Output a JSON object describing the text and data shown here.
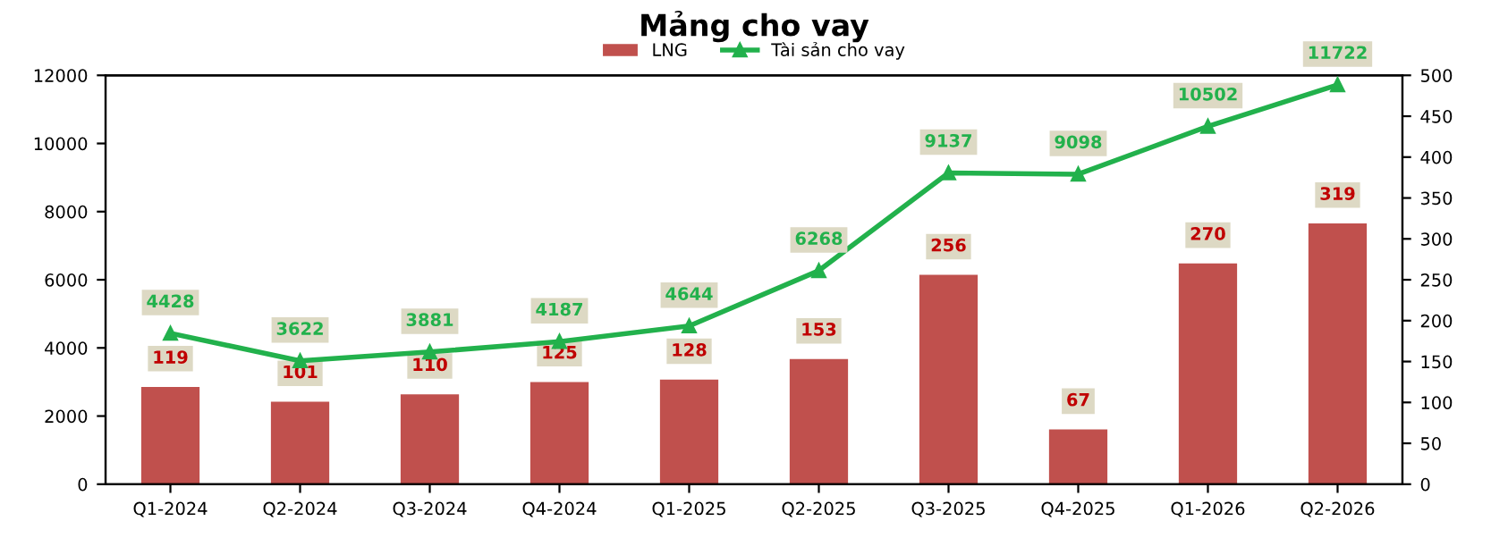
{
  "chart_data": {
    "type": "bar",
    "title": "Mảng cho vay",
    "categories": [
      "Q1-2024",
      "Q2-2024",
      "Q3-2024",
      "Q4-2024",
      "Q1-2025",
      "Q2-2025",
      "Q3-2025",
      "Q4-2025",
      "Q1-2026",
      "Q2-2026"
    ],
    "series": [
      {
        "name": "LNG",
        "color": "#c0504d",
        "axis": "y2",
        "values": [
          119,
          101,
          110,
          125,
          128,
          153,
          256,
          67,
          270,
          319
        ]
      },
      {
        "name": "Tài sản cho vay",
        "type": "line",
        "color": "#22b14c",
        "marker": "triangle",
        "values": [
          4428,
          3622,
          3881,
          4187,
          4644,
          6268,
          9137,
          9098,
          10502,
          11722
        ]
      }
    ],
    "ylim": [
      0,
      12000
    ],
    "yticks": [
      0,
      2000,
      4000,
      6000,
      8000,
      10000,
      12000
    ],
    "y2lim": [
      0,
      500
    ],
    "y2ticks": [
      0,
      50,
      100,
      150,
      200,
      250,
      300,
      350,
      400,
      450,
      500
    ],
    "data_labels": true,
    "legend": "top",
    "grid": false
  }
}
